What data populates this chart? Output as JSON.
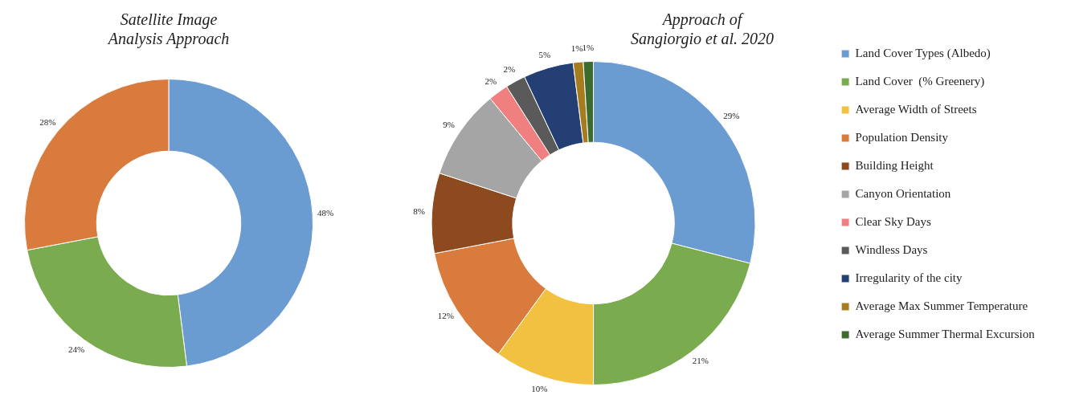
{
  "chart_data": [
    {
      "type": "donut",
      "title": "Satellite Image Analysis Approach",
      "categories": [
        null,
        null,
        null
      ],
      "values": [
        48,
        24,
        28
      ],
      "colors": [
        "#6a9bd1",
        "#7aab4f",
        "#d97b3d"
      ],
      "value_labels": [
        "48%",
        "24%",
        "28%"
      ],
      "legend": false
    },
    {
      "type": "donut",
      "title": "Approach of Sangiorgio et al. 2020",
      "categories": [
        "Land Cover Types (Albedo)",
        "Land Cover  (% Greenery)",
        "Average Width of Streets",
        "Population Density",
        "Building Height",
        "Canyon Orientation",
        "Clear Sky Days",
        "Windless Days",
        "Irregularity of the city",
        "Average Max Summer Temperature",
        "Average Summer Thermal Excursion"
      ],
      "values": [
        29,
        21,
        10,
        12,
        8,
        9,
        2,
        2,
        5,
        1,
        1
      ],
      "colors": [
        "#6a9bd1",
        "#7aab4f",
        "#f2c140",
        "#d97b3d",
        "#8c4a1e",
        "#a5a5a5",
        "#f08080",
        "#5a5a5a",
        "#233f73",
        "#a57d1e",
        "#3c6b2e"
      ],
      "value_labels": [
        "29%",
        "21%",
        "10%",
        "12%",
        "8%",
        "9%",
        "2%",
        "2%",
        "5%",
        "1%",
        "1%"
      ],
      "legend": "right"
    }
  ]
}
